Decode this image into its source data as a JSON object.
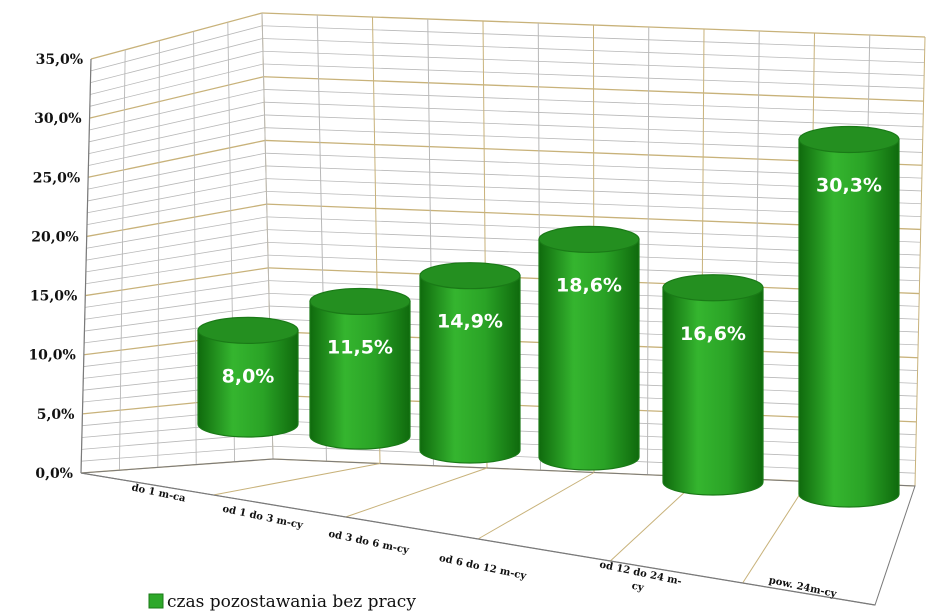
{
  "chart_data": {
    "type": "bar",
    "title": "",
    "xlabel": "",
    "ylabel": "",
    "ylim": [
      0,
      35
    ],
    "y_ticks": [
      "0,0%",
      "5,0%",
      "10,0%",
      "15,0%",
      "20,0%",
      "25,0%",
      "30,0%",
      "35,0%"
    ],
    "categories": [
      "do 1 m-ca",
      "od 1 do 3 m-cy",
      "od 3 do 6 m-cy",
      "od 6 do 12 m-cy",
      "od 12 do 24 m-cy",
      "pow. 24m-cy"
    ],
    "category_lines": [
      [
        "do 1 m-ca"
      ],
      [
        "od 1 do 3 m-cy"
      ],
      [
        "od 3 do 6 m-cy"
      ],
      [
        "od 6 do 12 m-cy"
      ],
      [
        "od 12 do 24 m-",
        "cy"
      ],
      [
        "pow. 24m-cy"
      ]
    ],
    "series": [
      {
        "name": "czas pozostawania bez pracy",
        "values": [
          8.0,
          11.5,
          14.9,
          18.6,
          16.6,
          30.3
        ],
        "labels": [
          "8,0%",
          "11,5%",
          "14,9%",
          "18,6%",
          "16,6%",
          "30,3%"
        ]
      }
    ],
    "style": "3d-cylinder",
    "grid": true,
    "legend_position": "bottom-left",
    "colors": {
      "bar": "#2ea82a",
      "bar_dark": "#1a7a17",
      "bar_top": "#248f20",
      "grid_major": "#c8b27a",
      "grid_minor": "#b8b8b8",
      "axis": "#7a7a7a"
    }
  }
}
